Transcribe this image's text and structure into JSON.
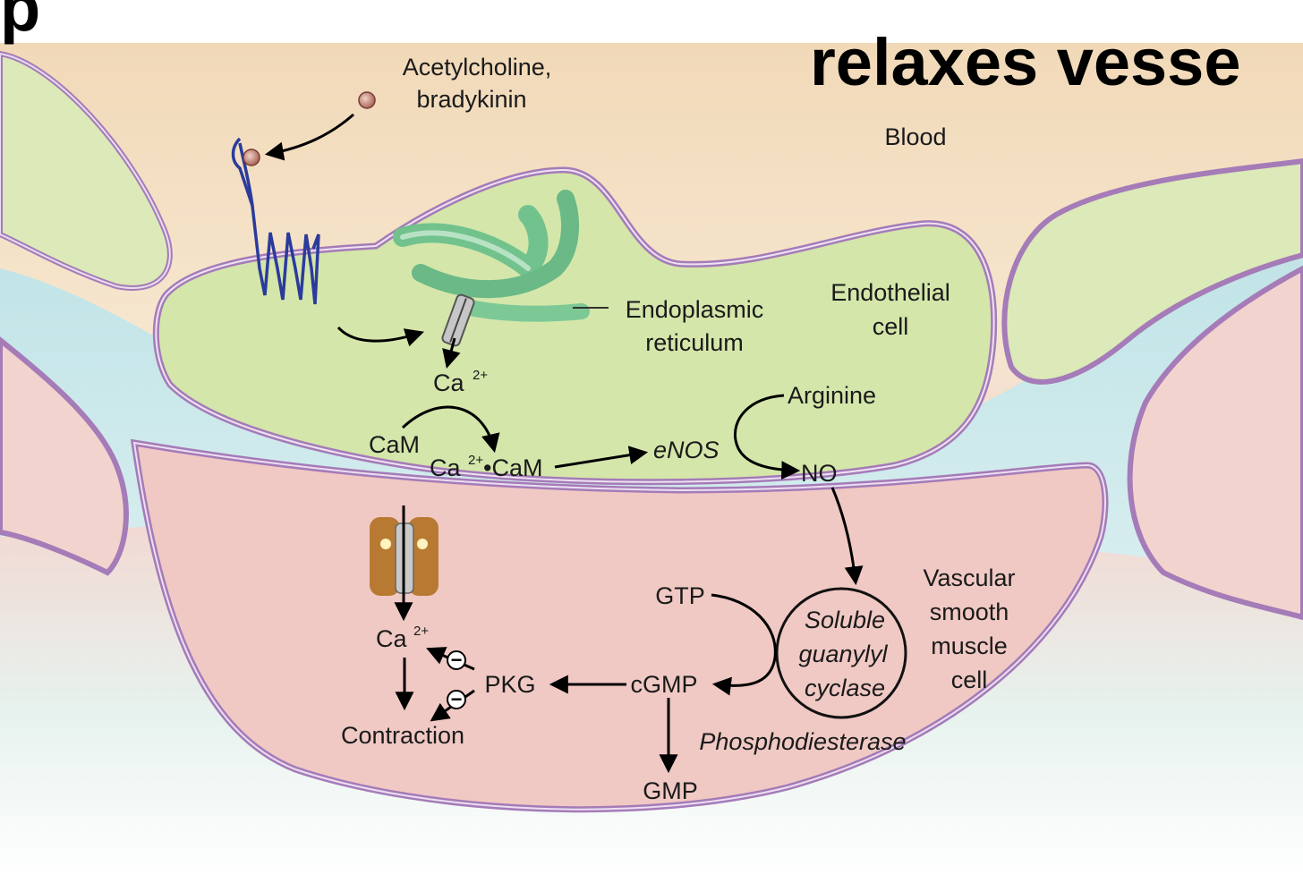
{
  "slide": {
    "title": "relaxes vesse",
    "title_partial_left": "p"
  },
  "labels": {
    "agonists_line1": "Acetylcholine,",
    "agonists_line2": "bradykinin",
    "blood": "Blood",
    "er_line1": "Endoplasmic",
    "er_line2": "reticulum",
    "endothelial_line1": "Endothelial",
    "endothelial_line2": "cell",
    "ca_endo": "Ca",
    "ca_endo_sup": "2+",
    "cam": "CaM",
    "ca_cam": "Ca",
    "ca_cam_sup": "2+",
    "ca_cam_rest": "•CaM",
    "enos": "eNOS",
    "arginine": "Arginine",
    "no": "NO",
    "vsmc_line1": "Vascular",
    "vsmc_line2": "smooth",
    "vsmc_line3": "muscle",
    "vsmc_line4": "cell",
    "gtp": "GTP",
    "sgc_line1": "Soluble",
    "sgc_line2": "guanylyl",
    "sgc_line3": "cyclase",
    "cgmp": "cGMP",
    "pkg": "PKG",
    "ca_smc": "Ca",
    "ca_smc_sup": "2+",
    "contraction": "Contraction",
    "phosphodiesterase": "Phosphodiesterase",
    "gmp": "GMP",
    "minus_1": "−",
    "minus_2": "−"
  },
  "colors": {
    "blood": "#f3dcc0",
    "endothelium": "#d4e6aa",
    "smooth_muscle": "#f0c9c4",
    "interstitium": "#bfe2e4",
    "membrane": "#a57bb8",
    "er": "#6fbf8c",
    "receptor": "#2b3b9c",
    "ligand": "#c8877a",
    "channel": "#b87a33"
  }
}
